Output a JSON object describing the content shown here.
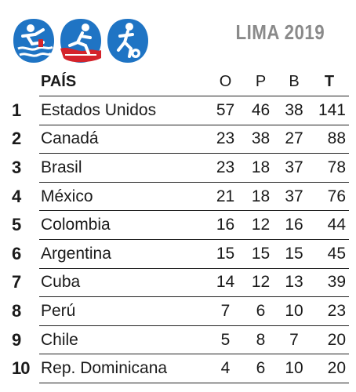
{
  "header": {
    "event_title": "LIMA 2019",
    "sport_icons": [
      "water-ski-icon",
      "triathlon-icon",
      "football-icon"
    ]
  },
  "colors": {
    "icon_blue": "#1f74c4",
    "icon_red": "#d4232b",
    "title_gray": "#8a8a8a",
    "text": "#1a1a1a"
  },
  "chart_data": {
    "type": "table",
    "columns": [
      "PAÍS",
      "O",
      "P",
      "B",
      "T"
    ],
    "rows": [
      {
        "rank": "1",
        "country": "Estados Unidos",
        "o": 57,
        "p": 46,
        "b": 38,
        "t": 141
      },
      {
        "rank": "2",
        "country": "Canadá",
        "o": 23,
        "p": 38,
        "b": 27,
        "t": 88
      },
      {
        "rank": "3",
        "country": "Brasil",
        "o": 23,
        "p": 18,
        "b": 37,
        "t": 78
      },
      {
        "rank": "4",
        "country": "México",
        "o": 21,
        "p": 18,
        "b": 37,
        "t": 76
      },
      {
        "rank": "5",
        "country": "Colombia",
        "o": 16,
        "p": 12,
        "b": 16,
        "t": 44
      },
      {
        "rank": "6",
        "country": "Argentina",
        "o": 15,
        "p": 15,
        "b": 15,
        "t": 45
      },
      {
        "rank": "7",
        "country": "Cuba",
        "o": 14,
        "p": 12,
        "b": 13,
        "t": 39
      },
      {
        "rank": "8",
        "country": "Perú",
        "o": 7,
        "p": 6,
        "b": 10,
        "t": 23
      },
      {
        "rank": "9",
        "country": "Chile",
        "o": 5,
        "p": 8,
        "b": 7,
        "t": 20
      },
      {
        "rank": "10",
        "country": "Rep. Dominicana",
        "o": 4,
        "p": 6,
        "b": 10,
        "t": 20
      }
    ]
  }
}
